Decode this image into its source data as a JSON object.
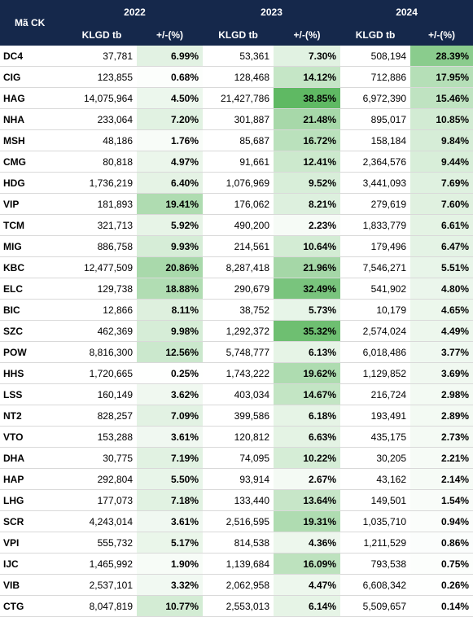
{
  "header": {
    "ticker_label": "Mã CK",
    "years": [
      "2022",
      "2023",
      "2024"
    ],
    "volume_label": "KLGD tb",
    "change_label": "+/-(%)"
  },
  "rows": [
    {
      "ticker": "DC4",
      "vals": [
        "37,781",
        "6.99%",
        "53,361",
        "7.30%",
        "508,194",
        "28.39%"
      ]
    },
    {
      "ticker": "CIG",
      "vals": [
        "123,855",
        "0.68%",
        "128,468",
        "14.12%",
        "712,886",
        "17.95%"
      ]
    },
    {
      "ticker": "HAG",
      "vals": [
        "14,075,964",
        "4.50%",
        "21,427,786",
        "38.85%",
        "6,972,390",
        "15.46%"
      ]
    },
    {
      "ticker": "NHA",
      "vals": [
        "233,064",
        "7.20%",
        "301,887",
        "21.48%",
        "895,017",
        "10.85%"
      ]
    },
    {
      "ticker": "MSH",
      "vals": [
        "48,186",
        "1.76%",
        "85,687",
        "16.72%",
        "158,184",
        "9.84%"
      ]
    },
    {
      "ticker": "CMG",
      "vals": [
        "80,818",
        "4.97%",
        "91,661",
        "12.41%",
        "2,364,576",
        "9.44%"
      ]
    },
    {
      "ticker": "HDG",
      "vals": [
        "1,736,219",
        "6.40%",
        "1,076,969",
        "9.52%",
        "3,441,093",
        "7.69%"
      ]
    },
    {
      "ticker": "VIP",
      "vals": [
        "181,893",
        "19.41%",
        "176,062",
        "8.21%",
        "279,619",
        "7.60%"
      ]
    },
    {
      "ticker": "TCM",
      "vals": [
        "321,713",
        "5.92%",
        "490,200",
        "2.23%",
        "1,833,779",
        "6.61%"
      ]
    },
    {
      "ticker": "MIG",
      "vals": [
        "886,758",
        "9.93%",
        "214,561",
        "10.64%",
        "179,496",
        "6.47%"
      ]
    },
    {
      "ticker": "KBC",
      "vals": [
        "12,477,509",
        "20.86%",
        "8,287,418",
        "21.96%",
        "7,546,271",
        "5.51%"
      ]
    },
    {
      "ticker": "ELC",
      "vals": [
        "129,738",
        "18.88%",
        "290,679",
        "32.49%",
        "541,902",
        "4.80%"
      ]
    },
    {
      "ticker": "BIC",
      "vals": [
        "12,866",
        "8.11%",
        "38,752",
        "5.73%",
        "10,179",
        "4.65%"
      ]
    },
    {
      "ticker": "SZC",
      "vals": [
        "462,369",
        "9.98%",
        "1,292,372",
        "35.32%",
        "2,574,024",
        "4.49%"
      ]
    },
    {
      "ticker": "POW",
      "vals": [
        "8,816,300",
        "12.56%",
        "5,748,777",
        "6.13%",
        "6,018,486",
        "3.77%"
      ]
    },
    {
      "ticker": "HHS",
      "vals": [
        "1,720,665",
        "0.25%",
        "1,743,222",
        "19.62%",
        "1,129,852",
        "3.69%"
      ]
    },
    {
      "ticker": "LSS",
      "vals": [
        "160,149",
        "3.62%",
        "403,034",
        "14.67%",
        "216,724",
        "2.98%"
      ]
    },
    {
      "ticker": "NT2",
      "vals": [
        "828,257",
        "7.09%",
        "399,586",
        "6.18%",
        "193,491",
        "2.89%"
      ]
    },
    {
      "ticker": "VTO",
      "vals": [
        "153,288",
        "3.61%",
        "120,812",
        "6.63%",
        "435,175",
        "2.73%"
      ]
    },
    {
      "ticker": "DHA",
      "vals": [
        "30,775",
        "7.19%",
        "74,095",
        "10.22%",
        "30,205",
        "2.21%"
      ]
    },
    {
      "ticker": "HAP",
      "vals": [
        "292,804",
        "5.50%",
        "93,914",
        "2.67%",
        "43,162",
        "2.14%"
      ]
    },
    {
      "ticker": "LHG",
      "vals": [
        "177,073",
        "7.18%",
        "133,440",
        "13.64%",
        "149,501",
        "1.54%"
      ]
    },
    {
      "ticker": "SCR",
      "vals": [
        "4,243,014",
        "3.61%",
        "2,516,595",
        "19.31%",
        "1,035,710",
        "0.94%"
      ]
    },
    {
      "ticker": "VPI",
      "vals": [
        "555,732",
        "5.17%",
        "814,538",
        "4.36%",
        "1,211,529",
        "0.86%"
      ]
    },
    {
      "ticker": "IJC",
      "vals": [
        "1,465,992",
        "1.90%",
        "1,139,684",
        "16.09%",
        "793,538",
        "0.75%"
      ]
    },
    {
      "ticker": "VIB",
      "vals": [
        "2,537,101",
        "3.32%",
        "2,062,958",
        "4.47%",
        "6,608,342",
        "0.26%"
      ]
    },
    {
      "ticker": "CTG",
      "vals": [
        "8,047,819",
        "10.77%",
        "2,553,013",
        "6.14%",
        "5,509,657",
        "0.14%"
      ]
    }
  ],
  "heat_colors": {
    "low": "#ffffff",
    "high": "#5fb963"
  }
}
